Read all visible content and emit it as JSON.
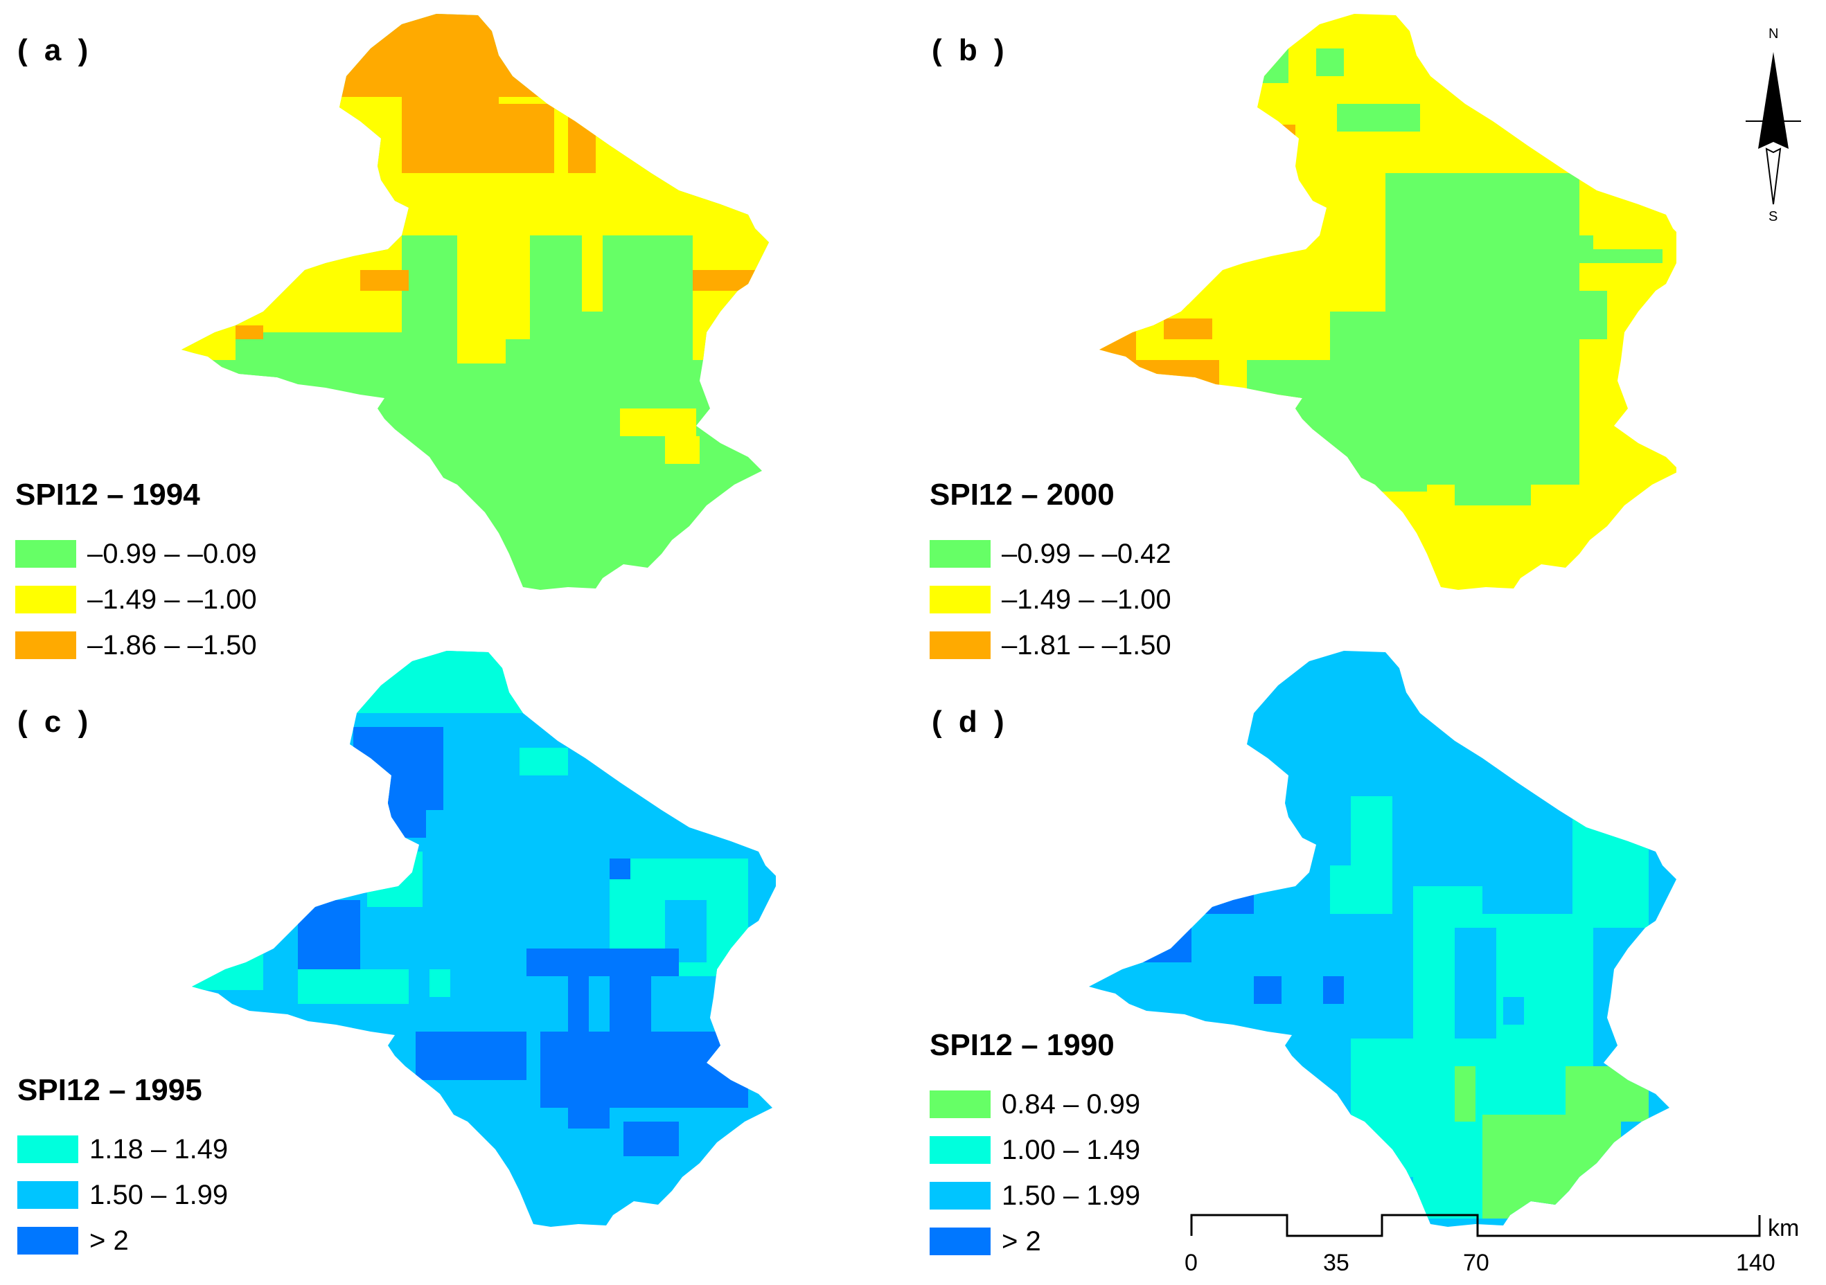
{
  "colors": {
    "green": "#66ff66",
    "yellow": "#ffff00",
    "orange": "#ffaa00",
    "cyan": "#00ffdd",
    "lightblue": "#00c5ff",
    "blue": "#0077ff"
  },
  "panels": [
    {
      "id": "a",
      "label": "( a )",
      "legend_title": "SPI12 – 1994",
      "legend_items": [
        {
          "label": "–0.99 – –0.09",
          "color": "#66ff66"
        },
        {
          "label": "–1.49 – –1.00",
          "color": "#ffff00"
        },
        {
          "label": "–1.86 – –1.50",
          "color": "#ffaa00"
        }
      ]
    },
    {
      "id": "b",
      "label": "( b )",
      "legend_title": "SPI12 – 2000",
      "legend_items": [
        {
          "label": "–0.99 – –0.42",
          "color": "#66ff66"
        },
        {
          "label": "–1.49 – –1.00",
          "color": "#ffff00"
        },
        {
          "label": "–1.81 – –1.50",
          "color": "#ffaa00"
        }
      ]
    },
    {
      "id": "c",
      "label": "( c )",
      "legend_title": "SPI12 – 1995",
      "legend_items": [
        {
          "label": "1.18 – 1.49",
          "color": "#00ffdd"
        },
        {
          "label": "1.50 – 1.99",
          "color": "#00c5ff"
        },
        {
          "label": "> 2",
          "color": "#0077ff"
        }
      ]
    },
    {
      "id": "d",
      "label": "( d )",
      "legend_title": "SPI12 – 1990",
      "legend_items": [
        {
          "label": "0.84 – 0.99",
          "color": "#66ff66"
        },
        {
          "label": "1.00 – 1.49",
          "color": "#00ffdd"
        },
        {
          "label": "1.50 – 1.99",
          "color": "#00c5ff"
        },
        {
          "label": "> 2",
          "color": "#0077ff"
        }
      ]
    }
  ],
  "north_arrow": {
    "north": "N",
    "south": "S"
  },
  "scale_bar": {
    "ticks": [
      "0",
      "35",
      "70",
      "140"
    ],
    "unit": "km"
  }
}
